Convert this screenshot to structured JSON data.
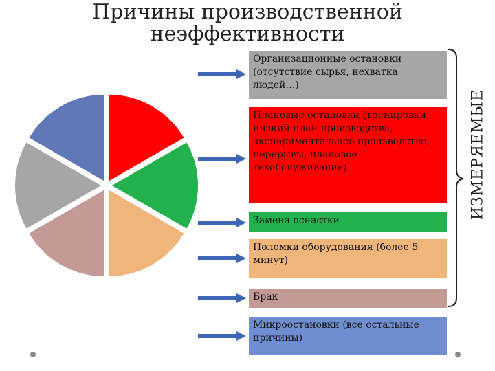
{
  "title": [
    "Причины производственной",
    "неэффективности"
  ],
  "side_label": "ИЗМЕРЯЕМЫЕ",
  "causes": [
    {
      "text": "Организационные остановки (отсутствие сырья, нехватка людей…)",
      "color": "#a6a6a6"
    },
    {
      "text": "Плановые остановки (тренировки, низкий план производства, экспериментальное производство, перерывы, плановое техобслуживание)",
      "color": "#ff0000"
    },
    {
      "text": "Замена оснастки",
      "color": "#22b14c"
    },
    {
      "text": "Поломки оборудования (более 5 минут)",
      "color": "#f0b57a"
    },
    {
      "text": "Брак",
      "color": "#c49a96"
    },
    {
      "text": "Микроостановки (все остальные причины)",
      "color": "#6f8ed1"
    }
  ],
  "pie": {
    "slice_colors": [
      "#ff0000",
      "#22b14c",
      "#f0b57a",
      "#c49a96",
      "#a6a6a6",
      "#6078b8"
    ]
  },
  "arrow_color": "#3f66b5"
}
